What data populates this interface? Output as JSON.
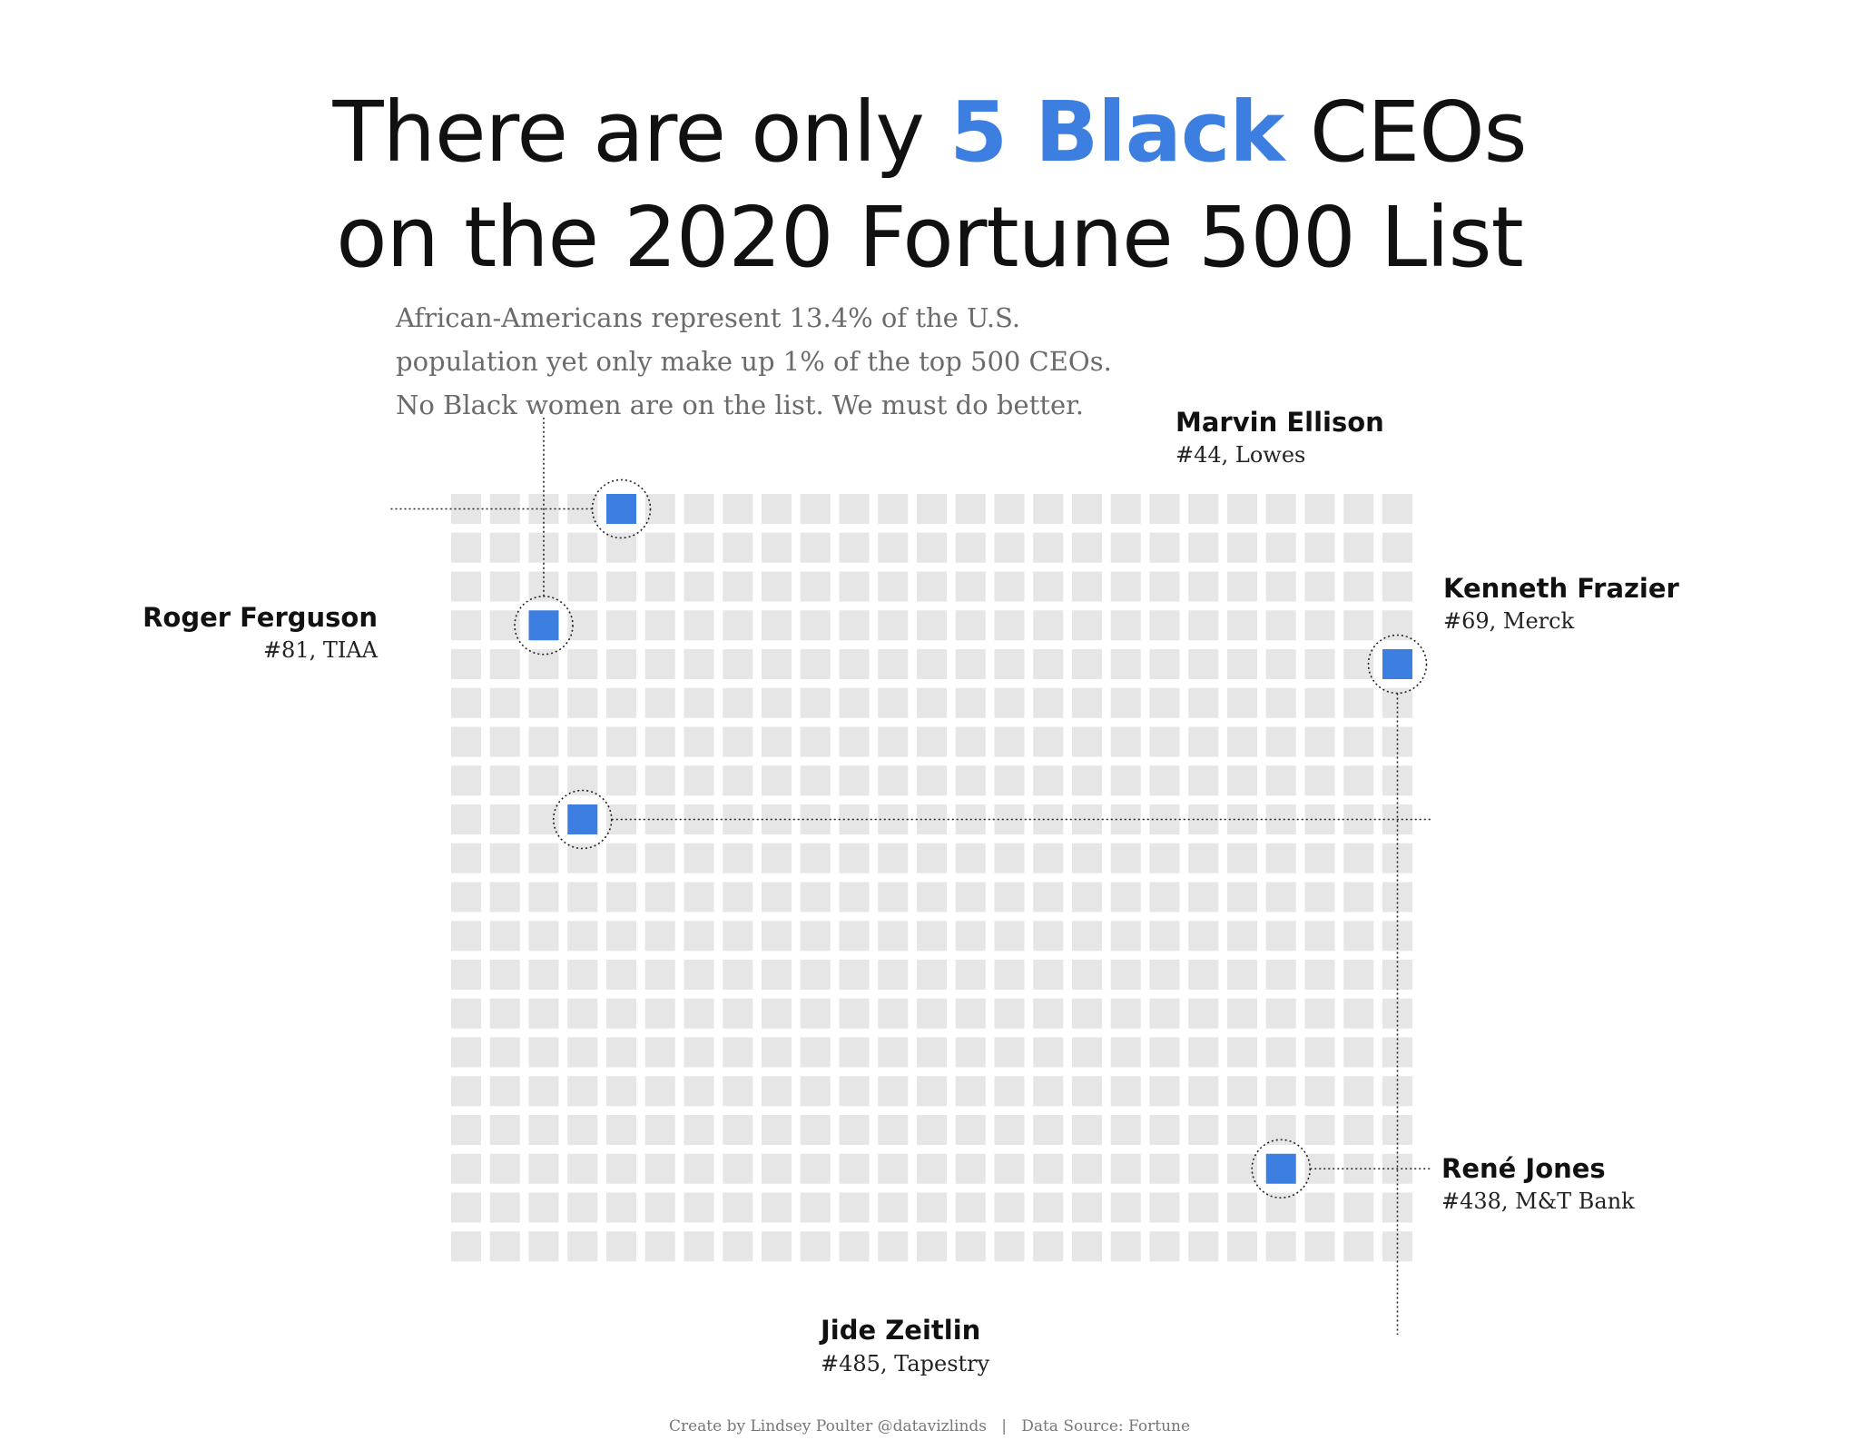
{
  "title": {
    "before": "There are only ",
    "highlight": "5 Black",
    "after": " CEOs",
    "line2": "on the 2020 Fortune 500 List",
    "highlight_color": "#3D7FE0"
  },
  "subtitle": [
    "African-Americans represent 13.4% of the U.S.",
    "population yet only make up 1% of the top 500 CEOs.",
    "No Black women are on the list. We must do better."
  ],
  "chart_data": {
    "type": "waffle",
    "columns": 25,
    "rows": 20,
    "total": 500,
    "ordering": "column-major, rank 1 at top-left",
    "empty_color": "#E6E6E6",
    "highlight_color": "#3D7FE0",
    "highlights": [
      {
        "rank": 44,
        "name": "Marvin Ellison",
        "detail": "#44, Lowes"
      },
      {
        "rank": 69,
        "name": "Kenneth Frazier",
        "detail": "#69, Merck"
      },
      {
        "rank": 81,
        "name": "Roger Ferguson",
        "detail": "#81, TIAA"
      },
      {
        "rank": 438,
        "name": "René Jones",
        "detail": "#438, M&T Bank"
      },
      {
        "rank": 485,
        "name": "Jide Zeitlin",
        "detail": "#485, Tapestry"
      }
    ]
  },
  "footer": {
    "credit": "Create by Lindsey Poulter @datavizlinds",
    "separator": "|",
    "source": "Data Source: Fortune"
  }
}
